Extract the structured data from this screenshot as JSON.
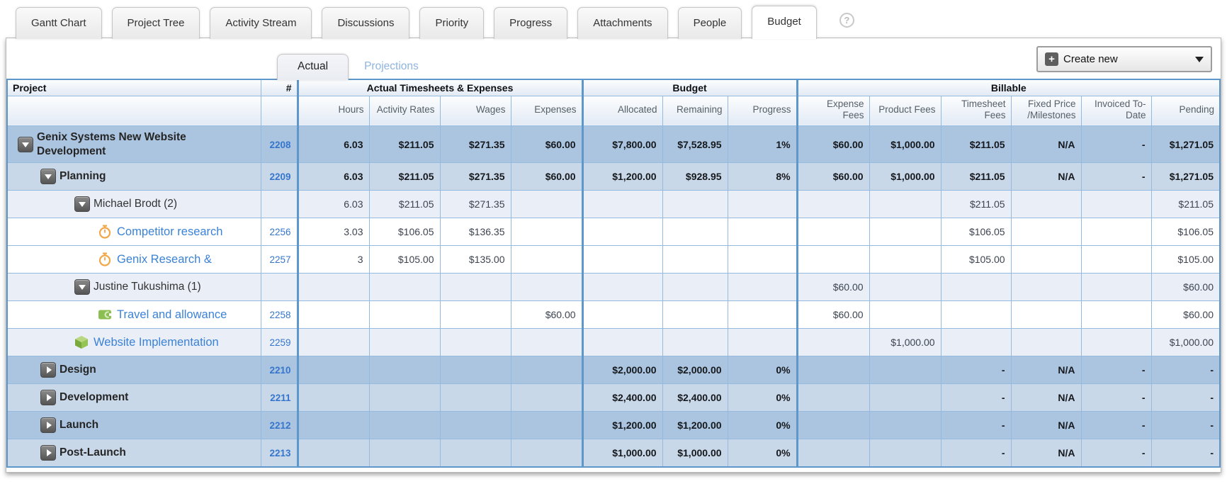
{
  "tabs": [
    {
      "label": "Gantt Chart",
      "active": false
    },
    {
      "label": "Project Tree",
      "active": false
    },
    {
      "label": "Activity Stream",
      "active": false
    },
    {
      "label": "Discussions",
      "active": false
    },
    {
      "label": "Priority",
      "active": false
    },
    {
      "label": "Progress",
      "active": false
    },
    {
      "label": "Attachments",
      "active": false
    },
    {
      "label": "People",
      "active": false
    },
    {
      "label": "Budget",
      "active": true
    }
  ],
  "help_icon": "?",
  "subtabs": {
    "actual": "Actual",
    "projections": "Projections"
  },
  "create_new": {
    "label": "Create new",
    "plus_icon": "plus-icon",
    "caret_icon": "caret-down-icon"
  },
  "colors": {
    "table_border": "#5e97c9",
    "cell_border": "#94bbdf",
    "link": "#3b82d6",
    "row_group_dark": "#abc5e0",
    "row_group_light": "#c9d8e9",
    "row_detail_pale": "#e9eef7",
    "row_detail_white": "#ffffff",
    "header_bg": "#e9eff7",
    "expander_bg": "#666666",
    "timer_icon": "#f0a848",
    "expense_icon": "#8cbf52",
    "cube_icon": "#8ab945"
  },
  "table": {
    "groups": [
      {
        "label": "Project"
      },
      {
        "label": "#"
      },
      {
        "label": "Actual Timesheets & Expenses",
        "span": 4
      },
      {
        "label": "Budget",
        "span": 3
      },
      {
        "label": "Billable",
        "span": 6
      }
    ],
    "columns": [
      "Hours",
      "Activity Rates",
      "Wages",
      "Expenses",
      "Allocated",
      "Remaining",
      "Progress",
      "Expense Fees",
      "Product Fees",
      "Timesheet Fees",
      "Fixed Price /Milestones",
      "Invoiced To-Date",
      "Pending"
    ],
    "rows": [
      {
        "name": "Genix Systems New Website Development",
        "id": "2208",
        "level": 0,
        "icon": "expander-down-icon",
        "link": false,
        "bold": true,
        "variant": "group-dark",
        "first": true,
        "cells": [
          "6.03",
          "$211.05",
          "$271.35",
          "$60.00",
          "$7,800.00",
          "$7,528.95",
          "1%",
          "$60.00",
          "$1,000.00",
          "$211.05",
          "N/A",
          "-",
          "$1,271.05"
        ]
      },
      {
        "name": "Planning",
        "id": "2209",
        "level": 1,
        "icon": "expander-down-icon",
        "link": false,
        "bold": true,
        "variant": "group-light",
        "cells": [
          "6.03",
          "$211.05",
          "$271.35",
          "$60.00",
          "$1,200.00",
          "$928.95",
          "8%",
          "$60.00",
          "$1,000.00",
          "$211.05",
          "N/A",
          "-",
          "$1,271.05"
        ]
      },
      {
        "name": "Michael Brodt (2)",
        "id": "",
        "level": 2,
        "icon": "expander-down-icon",
        "link": false,
        "bold": false,
        "variant": "detail-pale",
        "cells": [
          "6.03",
          "$211.05",
          "$271.35",
          "",
          "",
          "",
          "",
          "",
          "",
          "$211.05",
          "",
          "",
          "$211.05"
        ]
      },
      {
        "name": "Competitor research",
        "id": "2256",
        "level": 3,
        "icon": "timer-icon",
        "link": true,
        "bold": false,
        "variant": "detail-white",
        "cells": [
          "3.03",
          "$106.05",
          "$136.35",
          "",
          "",
          "",
          "",
          "",
          "",
          "$106.05",
          "",
          "",
          "$106.05"
        ]
      },
      {
        "name": "Genix Research &",
        "id": "2257",
        "level": 3,
        "icon": "timer-icon",
        "link": true,
        "bold": false,
        "variant": "detail-white",
        "cells": [
          "3",
          "$105.00",
          "$135.00",
          "",
          "",
          "",
          "",
          "",
          "",
          "$105.00",
          "",
          "",
          "$105.00"
        ]
      },
      {
        "name": "Justine Tukushima (1)",
        "id": "",
        "level": 2,
        "icon": "expander-down-icon",
        "link": false,
        "bold": false,
        "variant": "detail-pale",
        "cells": [
          "",
          "",
          "",
          "",
          "",
          "",
          "",
          "$60.00",
          "",
          "",
          "",
          "",
          "$60.00"
        ]
      },
      {
        "name": "Travel and allowance",
        "id": "2258",
        "level": 3,
        "icon": "expense-icon",
        "link": true,
        "bold": false,
        "variant": "detail-white",
        "cells": [
          "",
          "",
          "",
          "$60.00",
          "",
          "",
          "",
          "$60.00",
          "",
          "",
          "",
          "",
          "$60.00"
        ]
      },
      {
        "name": "Website Implementation",
        "id": "2259",
        "level": 2,
        "icon": "cube-icon",
        "link": true,
        "bold": false,
        "variant": "detail-pale",
        "cells": [
          "",
          "",
          "",
          "",
          "",
          "",
          "",
          "",
          "$1,000.00",
          "",
          "",
          "",
          "$1,000.00"
        ]
      },
      {
        "name": "Design",
        "id": "2210",
        "level": 1,
        "icon": "expander-right-icon",
        "link": false,
        "bold": true,
        "variant": "group-dark",
        "cells": [
          "",
          "",
          "",
          "",
          "$2,000.00",
          "$2,000.00",
          "0%",
          "",
          "",
          "-",
          "N/A",
          "-",
          "-"
        ]
      },
      {
        "name": "Development",
        "id": "2211",
        "level": 1,
        "icon": "expander-right-icon",
        "link": false,
        "bold": true,
        "variant": "group-light",
        "cells": [
          "",
          "",
          "",
          "",
          "$2,400.00",
          "$2,400.00",
          "0%",
          "",
          "",
          "-",
          "N/A",
          "-",
          "-"
        ]
      },
      {
        "name": "Launch",
        "id": "2212",
        "level": 1,
        "icon": "expander-right-icon",
        "link": false,
        "bold": true,
        "variant": "group-dark",
        "cells": [
          "",
          "",
          "",
          "",
          "$1,200.00",
          "$1,200.00",
          "0%",
          "",
          "",
          "-",
          "N/A",
          "-",
          "-"
        ]
      },
      {
        "name": "Post-Launch",
        "id": "2213",
        "level": 1,
        "icon": "expander-right-icon",
        "link": false,
        "bold": true,
        "variant": "group-light",
        "cells": [
          "",
          "",
          "",
          "",
          "$1,000.00",
          "$1,000.00",
          "0%",
          "",
          "",
          "-",
          "N/A",
          "-",
          "-"
        ]
      }
    ]
  }
}
